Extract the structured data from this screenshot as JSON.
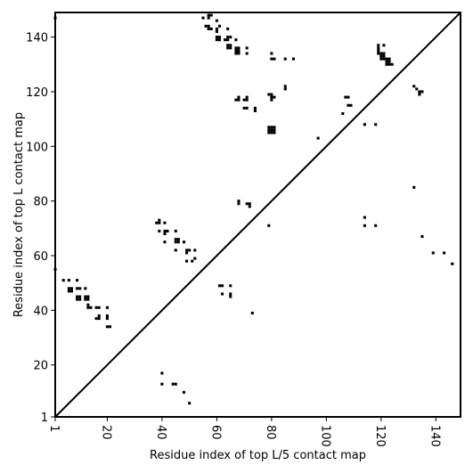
{
  "chart_data": {
    "type": "scatter",
    "title": "",
    "xlabel": "Residue index of top L/5 contact map",
    "ylabel": "Residue index of top L contact map",
    "xlim": [
      1,
      149
    ],
    "ylim": [
      1,
      149
    ],
    "xticks": [
      1,
      20,
      40,
      60,
      80,
      100,
      120,
      140
    ],
    "yticks": [
      1,
      20,
      40,
      60,
      80,
      100,
      120,
      140
    ],
    "x_tick_labels": [
      "1",
      "20",
      "40",
      "60",
      "80",
      "100",
      "120",
      "140"
    ],
    "y_tick_labels": [
      "1",
      "20",
      "40",
      "60",
      "80",
      "100",
      "120",
      "140"
    ],
    "diagonal": [
      [
        1,
        1
      ],
      [
        149,
        149
      ]
    ],
    "marker_color": "#000000",
    "marker": "square",
    "grid": false,
    "series": [
      {
        "name": "",
        "points": [
          [
            1,
            147
          ],
          [
            1,
            55
          ],
          [
            4,
            51
          ],
          [
            6,
            51
          ],
          [
            9,
            51
          ],
          [
            6,
            48
          ],
          [
            6,
            47
          ],
          [
            7,
            48
          ],
          [
            7,
            47
          ],
          [
            9,
            48
          ],
          [
            10,
            48
          ],
          [
            12,
            48
          ],
          [
            9,
            45
          ],
          [
            10,
            45
          ],
          [
            9,
            44
          ],
          [
            10,
            44
          ],
          [
            12,
            45
          ],
          [
            13,
            45
          ],
          [
            12,
            44
          ],
          [
            13,
            44
          ],
          [
            13,
            42
          ],
          [
            13,
            41
          ],
          [
            14,
            41
          ],
          [
            16,
            41
          ],
          [
            17,
            41
          ],
          [
            20,
            41
          ],
          [
            16,
            37
          ],
          [
            17,
            37
          ],
          [
            17,
            38
          ],
          [
            20,
            38
          ],
          [
            20,
            37
          ],
          [
            20,
            34
          ],
          [
            21,
            34
          ],
          [
            38,
            72
          ],
          [
            39,
            72
          ],
          [
            39,
            73
          ],
          [
            39,
            69
          ],
          [
            41,
            72
          ],
          [
            42,
            69
          ],
          [
            41,
            69
          ],
          [
            41,
            68
          ],
          [
            41,
            65
          ],
          [
            45,
            69
          ],
          [
            45,
            66
          ],
          [
            46,
            66
          ],
          [
            45,
            65
          ],
          [
            46,
            65
          ],
          [
            45,
            62
          ],
          [
            48,
            65
          ],
          [
            49,
            62
          ],
          [
            50,
            62
          ],
          [
            49,
            61
          ],
          [
            49,
            58
          ],
          [
            52,
            62
          ],
          [
            52,
            59
          ],
          [
            51,
            58
          ],
          [
            40,
            17
          ],
          [
            40,
            13
          ],
          [
            44,
            13
          ],
          [
            45,
            13
          ],
          [
            48,
            10
          ],
          [
            50,
            6
          ],
          [
            55,
            147
          ],
          [
            57,
            148
          ],
          [
            58,
            148
          ],
          [
            57,
            147
          ],
          [
            56,
            144
          ],
          [
            57,
            144
          ],
          [
            57,
            143
          ],
          [
            58,
            143
          ],
          [
            60,
            146
          ],
          [
            61,
            144
          ],
          [
            60,
            143
          ],
          [
            60,
            142
          ],
          [
            60,
            140
          ],
          [
            61,
            140
          ],
          [
            60,
            139
          ],
          [
            61,
            139
          ],
          [
            63,
            139
          ],
          [
            64,
            139
          ],
          [
            64,
            140
          ],
          [
            65,
            140
          ],
          [
            64,
            143
          ],
          [
            64,
            137
          ],
          [
            65,
            137
          ],
          [
            64,
            136
          ],
          [
            65,
            136
          ],
          [
            67,
            139
          ],
          [
            67,
            136
          ],
          [
            68,
            136
          ],
          [
            67,
            135
          ],
          [
            68,
            135
          ],
          [
            67,
            134
          ],
          [
            68,
            134
          ],
          [
            71,
            136
          ],
          [
            71,
            134
          ],
          [
            80,
            134
          ],
          [
            80,
            132
          ],
          [
            81,
            132
          ],
          [
            85,
            132
          ],
          [
            88,
            132
          ],
          [
            85,
            122
          ],
          [
            85,
            121
          ],
          [
            67,
            117
          ],
          [
            68,
            117
          ],
          [
            68,
            118
          ],
          [
            70,
            117
          ],
          [
            71,
            117
          ],
          [
            71,
            118
          ],
          [
            70,
            114
          ],
          [
            71,
            114
          ],
          [
            74,
            114
          ],
          [
            74,
            113
          ],
          [
            79,
            119
          ],
          [
            80,
            119
          ],
          [
            80,
            118
          ],
          [
            80,
            117
          ],
          [
            81,
            118
          ],
          [
            79,
            107
          ],
          [
            80,
            107
          ],
          [
            81,
            107
          ],
          [
            79,
            106
          ],
          [
            80,
            106
          ],
          [
            81,
            106
          ],
          [
            79,
            105
          ],
          [
            80,
            105
          ],
          [
            81,
            105
          ],
          [
            97,
            103
          ],
          [
            106,
            112
          ],
          [
            107,
            118
          ],
          [
            108,
            118
          ],
          [
            108,
            115
          ],
          [
            109,
            115
          ],
          [
            114,
            108
          ],
          [
            118,
            108
          ],
          [
            119,
            137
          ],
          [
            119,
            136
          ],
          [
            119,
            135
          ],
          [
            119,
            134
          ],
          [
            120,
            134
          ],
          [
            120,
            133
          ],
          [
            121,
            137
          ],
          [
            121,
            134
          ],
          [
            120,
            132
          ],
          [
            121,
            132
          ],
          [
            122,
            132
          ],
          [
            123,
            132
          ],
          [
            122,
            131
          ],
          [
            123,
            131
          ],
          [
            122,
            130
          ],
          [
            123,
            130
          ],
          [
            124,
            130
          ],
          [
            121,
            133
          ],
          [
            132,
            122
          ],
          [
            133,
            121
          ],
          [
            134,
            120
          ],
          [
            135,
            120
          ],
          [
            134,
            119
          ],
          [
            132,
            85
          ],
          [
            135,
            67
          ],
          [
            139,
            61
          ],
          [
            143,
            61
          ],
          [
            146,
            57
          ],
          [
            114,
            74
          ],
          [
            114,
            71
          ],
          [
            118,
            71
          ],
          [
            68,
            80
          ],
          [
            68,
            79
          ],
          [
            71,
            79
          ],
          [
            72,
            79
          ],
          [
            72,
            78
          ],
          [
            79,
            71
          ],
          [
            73,
            39
          ],
          [
            61,
            49
          ],
          [
            62,
            49
          ],
          [
            65,
            49
          ],
          [
            62,
            46
          ],
          [
            65,
            46
          ],
          [
            65,
            45
          ]
        ]
      }
    ]
  }
}
